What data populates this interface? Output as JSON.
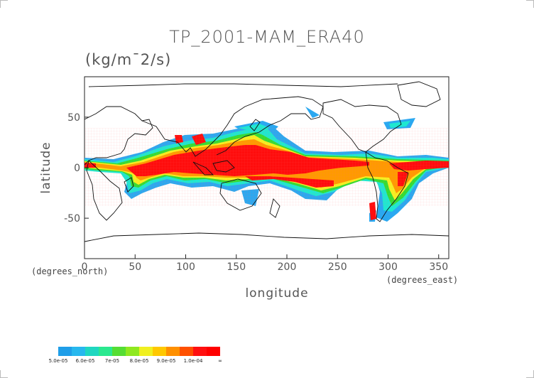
{
  "title": "TP_2001-MAM_ERA40",
  "units": "(kg/m¯2/s)",
  "axes": {
    "x_title": "longitude",
    "y_title": "latitude",
    "x_unit_note": "(degrees_east)",
    "y_unit_note": "(degrees_north)",
    "x_ticks": [
      "0",
      "50",
      "100",
      "150",
      "200",
      "250",
      "300",
      "350"
    ],
    "y_ticks": [
      "50",
      "0",
      "-50"
    ],
    "x_tick_values": [
      0,
      50,
      100,
      150,
      200,
      250,
      300,
      350
    ],
    "y_tick_values": [
      50,
      0,
      -50
    ],
    "x_range": [
      0,
      360
    ],
    "y_range": [
      -90,
      90
    ]
  },
  "colorbar": {
    "colors": [
      "#1f9ee8",
      "#27b8ee",
      "#1fd7c0",
      "#2ae88f",
      "#55dd33",
      "#8fe81f",
      "#f0f020",
      "#ffc800",
      "#ff9000",
      "#ff5000",
      "#ff1010",
      "#ff0000"
    ],
    "labels": [
      "5.0e-05",
      "6.0e-05",
      "7e-05",
      "8.0e-05",
      "9.0e-05",
      "1.0e-04",
      "∞"
    ]
  },
  "field_colors": {
    "blue": "#2ba8f0",
    "cyan": "#1ee8d0",
    "green": "#33dd33",
    "yellow": "#f5f020",
    "orange": "#ff9a00",
    "red": "#ff0d0d"
  }
}
